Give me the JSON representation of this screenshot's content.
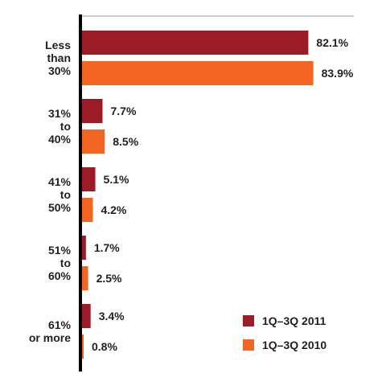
{
  "chart_data": {
    "type": "bar",
    "orientation": "horizontal",
    "categories": [
      [
        "Less",
        "than",
        "30%"
      ],
      [
        "31%",
        "to",
        "40%"
      ],
      [
        "41%",
        "to",
        "50%"
      ],
      [
        "51%",
        "to",
        "60%"
      ],
      [
        "61%",
        "or more"
      ]
    ],
    "series": [
      {
        "name": "1Q–3Q 2011",
        "color": "#9b1c26",
        "values": [
          82.1,
          7.7,
          5.1,
          1.7,
          3.4
        ],
        "labels": [
          "82.1%",
          "7.7%",
          "5.1%",
          "1.7%",
          "3.4%"
        ]
      },
      {
        "name": "1Q–3Q 2010",
        "color": "#f26522",
        "values": [
          83.9,
          8.5,
          4.2,
          2.5,
          0.8
        ],
        "labels": [
          "83.9%",
          "8.5%",
          "4.2%",
          "2.5%",
          "0.8%"
        ]
      }
    ],
    "xlim": [
      0,
      100
    ],
    "grid": false,
    "legend_position": "bottom-right"
  }
}
